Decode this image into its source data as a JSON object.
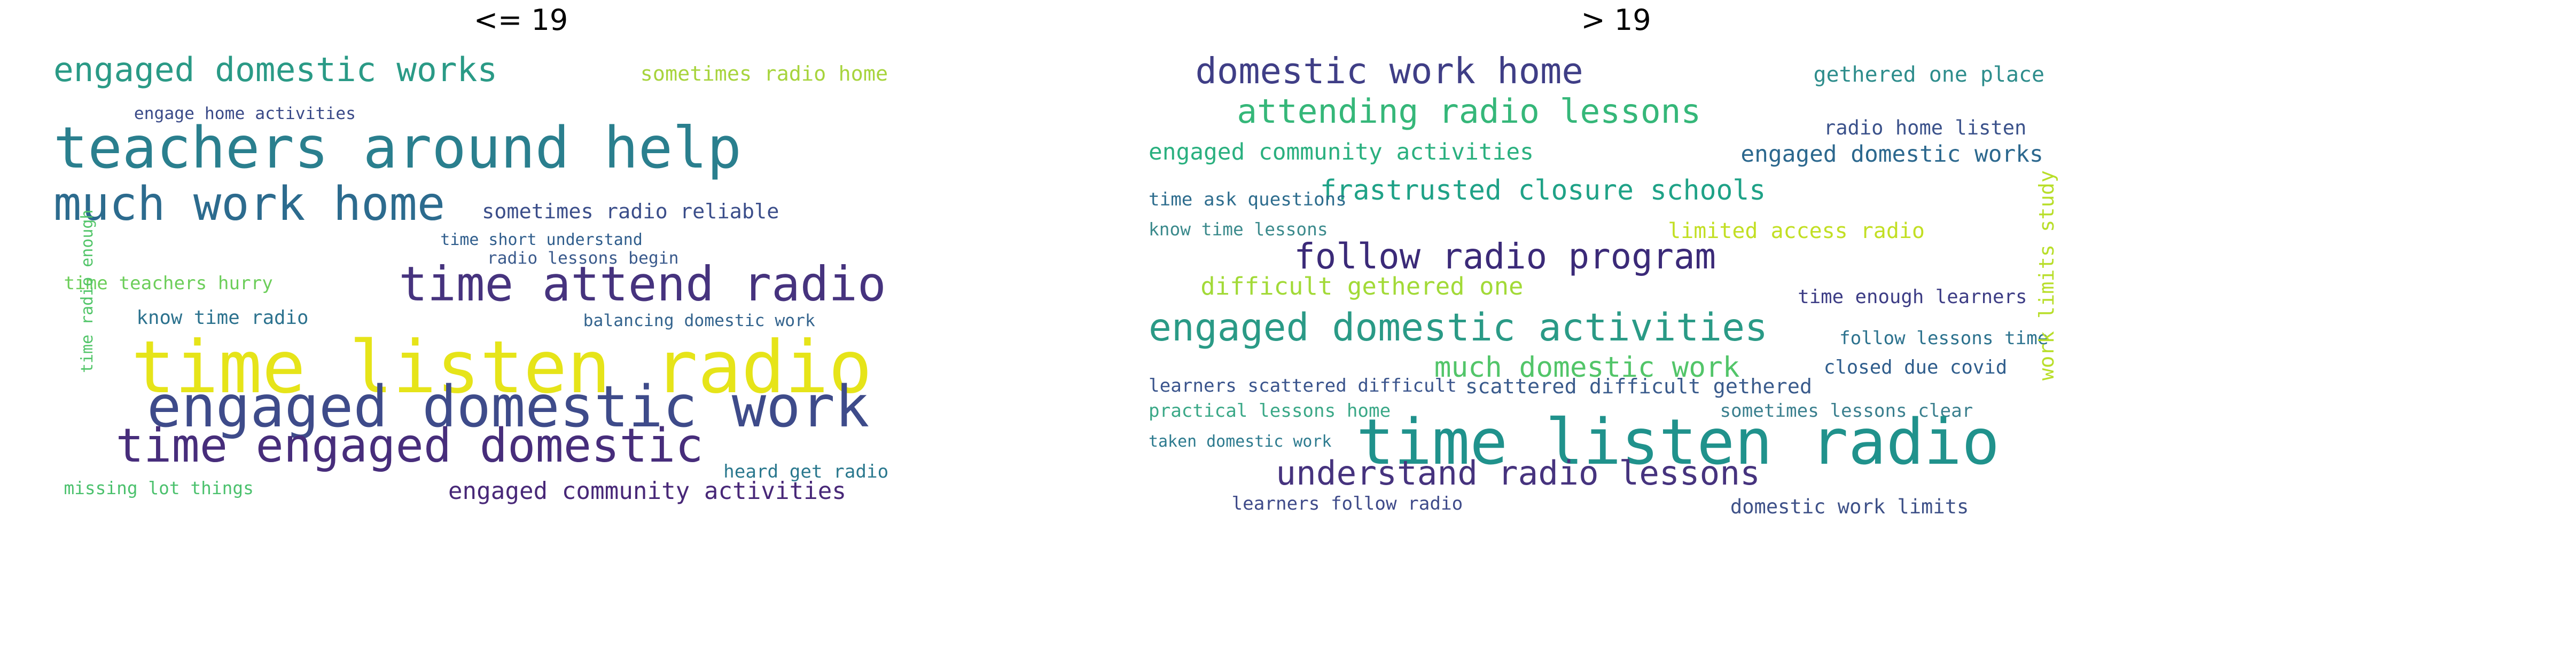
{
  "figure": {
    "left": {
      "title": "<= 19",
      "words": [
        {
          "text": "engaged domestic works",
          "color": "#2a9a86"
        },
        {
          "text": "sometimes radio home",
          "color": "#a7d43d"
        },
        {
          "text": "engage home activities",
          "color": "#3a4a88"
        },
        {
          "text": "teachers around help",
          "color": "#2a7f8e"
        },
        {
          "text": "much work home",
          "color": "#2c6b8e"
        },
        {
          "text": "sometimes radio reliable",
          "color": "#3b4e8a"
        },
        {
          "text": "time short understand",
          "color": "#2f5d8c"
        },
        {
          "text": "radio lessons begin",
          "color": "#3a5a8c"
        },
        {
          "text": "time teachers hurry",
          "color": "#6cce5a"
        },
        {
          "text": "time attend radio",
          "color": "#46337e"
        },
        {
          "text": "know time radio",
          "color": "#2c728e"
        },
        {
          "text": "balancing domestic work",
          "color": "#33638d"
        },
        {
          "text": "time listen radio",
          "color": "#e6e419"
        },
        {
          "text": "engaged domestic work",
          "color": "#3e4b8a"
        },
        {
          "text": "time engaged domestic",
          "color": "#472d7b"
        },
        {
          "text": "heard get radio",
          "color": "#2a788e"
        },
        {
          "text": "missing lot things",
          "color": "#4bc16d"
        },
        {
          "text": "engaged community activities",
          "color": "#482878"
        },
        {
          "text": "time radio enough",
          "color": "#52c569"
        }
      ]
    },
    "right": {
      "title": "> 19",
      "words": [
        {
          "text": "domestic work home",
          "color": "#3f3e86"
        },
        {
          "text": "attending radio lessons",
          "color": "#35b779"
        },
        {
          "text": "gethered one place",
          "color": "#2e8d8c"
        },
        {
          "text": "radio home listen",
          "color": "#3b528b"
        },
        {
          "text": "engaged community activities",
          "color": "#2ab07f"
        },
        {
          "text": "engaged domestic works",
          "color": "#2c688e"
        },
        {
          "text": "frastrusted closure schools",
          "color": "#1fa287"
        },
        {
          "text": "time ask questions",
          "color": "#2e6d8e"
        },
        {
          "text": "know time lessons",
          "color": "#3b8a8c"
        },
        {
          "text": "limited access radio",
          "color": "#c2df23"
        },
        {
          "text": "follow radio program",
          "color": "#3b2a78"
        },
        {
          "text": "difficult gethered one",
          "color": "#a2da37"
        },
        {
          "text": "time enough learners",
          "color": "#3d3d85"
        },
        {
          "text": "engaged domestic activities",
          "color": "#2a9a86"
        },
        {
          "text": "much domestic work",
          "color": "#52c569"
        },
        {
          "text": "closed due covid",
          "color": "#2f5d8c"
        },
        {
          "text": "learners scattered difficult",
          "color": "#3a548c"
        },
        {
          "text": "scattered difficult gethered",
          "color": "#3a5b8c"
        },
        {
          "text": "practical lessons home",
          "color": "#3aa887"
        },
        {
          "text": "sometimes lessons clear",
          "color": "#3a7f8e"
        },
        {
          "text": "time listen radio",
          "color": "#20928c"
        },
        {
          "text": "understand radio lessons",
          "color": "#46337e"
        },
        {
          "text": "learners follow radio",
          "color": "#3e4a89"
        },
        {
          "text": "domestic work limits",
          "color": "#3e5188"
        },
        {
          "text": "taken domestic work",
          "color": "#2c7a8e"
        },
        {
          "text": "follow lessons time",
          "color": "#2c728e"
        },
        {
          "text": "work limits study",
          "color": "#b8de29"
        }
      ]
    }
  }
}
